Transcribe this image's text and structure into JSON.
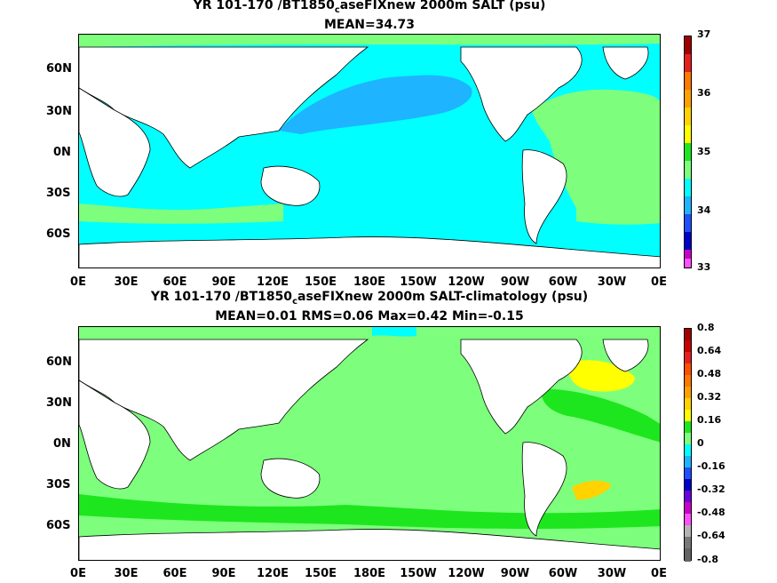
{
  "top": {
    "title_prefix": "YR 101-170 /BT1850",
    "title_sub": "c",
    "title_suffix": "aseFIXnew 2000m SALT (psu)",
    "subtitle": "MEAN=34.73",
    "colorbar_labels": [
      "37",
      "36",
      "35",
      "34",
      "33"
    ]
  },
  "bottom": {
    "title_prefix": "YR 101-170 /BT1850",
    "title_sub": "c",
    "title_suffix": "aseFIXnew 2000m SALT-climatology (psu)",
    "subtitle": "MEAN=0.01   RMS=0.06   Max=0.42   Min=-0.15",
    "colorbar_labels": [
      "0.8",
      "0.64",
      "0.48",
      "0.32",
      "0.16",
      "0",
      "-0.16",
      "-0.32",
      "-0.48",
      "-0.64",
      "-0.8"
    ]
  },
  "lat_labels": [
    "60N",
    "30N",
    "0N",
    "30S",
    "60S"
  ],
  "lon_labels": [
    "0E",
    "30E",
    "60E",
    "90E",
    "120E",
    "150E",
    "180E",
    "150W",
    "120W",
    "90W",
    "60W",
    "30W",
    "0E"
  ],
  "colors": {
    "land": "#ffffff",
    "cyan": "#00ffff",
    "blue_light": "#1eb4ff",
    "green_light": "#7dff7d",
    "green": "#1ee61e",
    "yellow": "#ffff00",
    "yellow_gold": "#ffd200"
  }
}
